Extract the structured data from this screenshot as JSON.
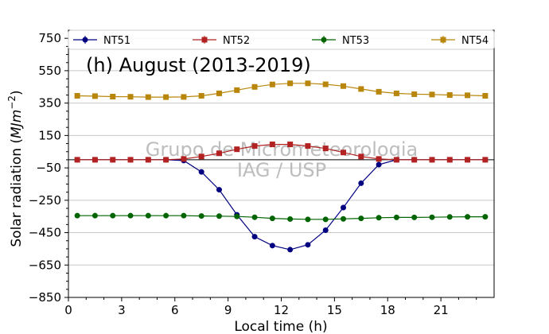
{
  "chart_data": {
    "type": "line",
    "title": "(h) August (2013-2019)",
    "xlabel": "Local time (h)",
    "ylabel_main": "Solar radiation (",
    "ylabel_unit": "MJm",
    "ylabel_exp": "−2",
    "ylabel_close": ")",
    "xlim": [
      0,
      24
    ],
    "ylim": [
      -850,
      800
    ],
    "xticks": [
      0,
      3,
      6,
      9,
      12,
      15,
      18,
      21
    ],
    "xtick_labels": [
      "0",
      "3",
      "6",
      "9",
      "12",
      "15",
      "18",
      "21"
    ],
    "yticks": [
      750,
      550,
      350,
      150,
      -50,
      -250,
      -450,
      -650,
      -850
    ],
    "ytick_labels": [
      "750",
      "550",
      "350",
      "150",
      "−50",
      "−250",
      "−450",
      "−650",
      "−850"
    ],
    "grid": "horizontal",
    "zero_line": 0,
    "legend_position": "top",
    "watermark": [
      "Grupo de Micrometeorologia",
      "IAG / USP"
    ],
    "x": [
      0.5,
      1.5,
      2.5,
      3.5,
      4.5,
      5.5,
      6.5,
      7.5,
      8.5,
      9.5,
      10.5,
      11.5,
      12.5,
      13.5,
      14.5,
      15.5,
      16.5,
      17.5,
      18.5,
      19.5,
      20.5,
      21.5,
      22.5,
      23.5
    ],
    "series": [
      {
        "name": "NT51",
        "color": "#000080",
        "marker": "circle",
        "values": [
          0,
          0,
          0,
          0,
          0,
          0,
          -5,
          -75,
          -185,
          -340,
          -475,
          -530,
          -555,
          -525,
          -435,
          -295,
          -145,
          -30,
          0,
          0,
          0,
          0,
          0,
          0
        ]
      },
      {
        "name": "NT52",
        "color": "#b22222",
        "marker": "square",
        "values": [
          0,
          0,
          0,
          0,
          0,
          0,
          5,
          20,
          40,
          65,
          85,
          95,
          95,
          85,
          70,
          45,
          20,
          5,
          0,
          0,
          0,
          0,
          0,
          0
        ]
      },
      {
        "name": "NT53",
        "color": "#006400",
        "marker": "circle",
        "values": [
          -345,
          -345,
          -345,
          -345,
          -345,
          -345,
          -345,
          -347,
          -348,
          -350,
          -355,
          -362,
          -366,
          -368,
          -368,
          -365,
          -362,
          -358,
          -356,
          -356,
          -355,
          -353,
          -352,
          -352
        ]
      },
      {
        "name": "NT54",
        "color": "#b8860b",
        "marker": "square",
        "values": [
          395,
          393,
          390,
          389,
          387,
          387,
          388,
          395,
          410,
          430,
          450,
          465,
          472,
          472,
          466,
          455,
          437,
          420,
          410,
          405,
          403,
          400,
          398,
          395
        ]
      }
    ]
  }
}
